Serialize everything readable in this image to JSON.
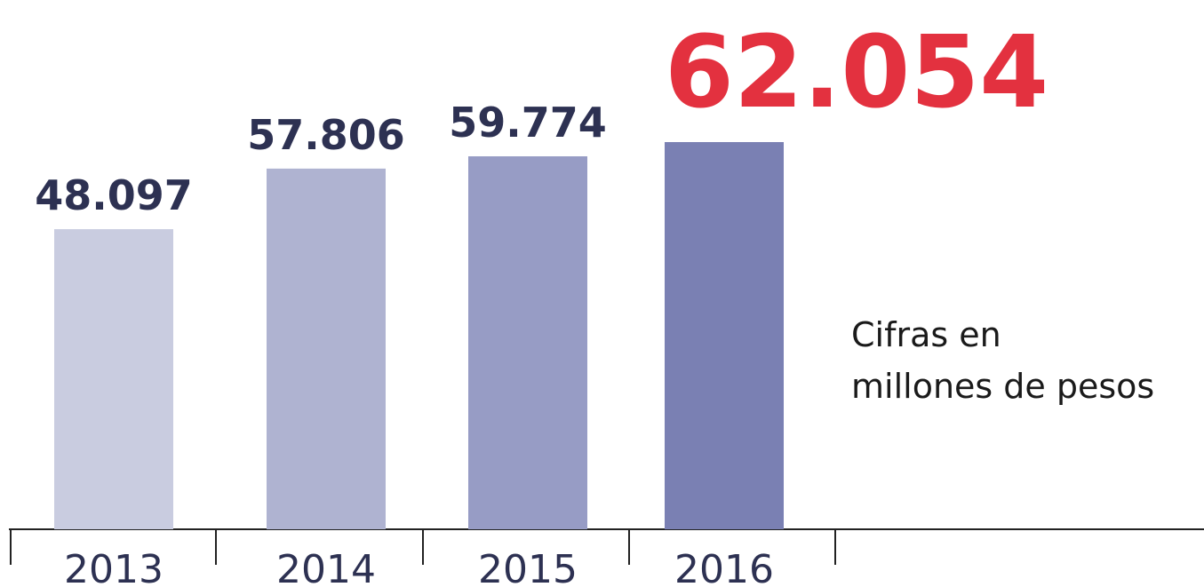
{
  "chart_data": {
    "type": "bar",
    "categories": [
      "2013",
      "2014",
      "2015",
      "2016"
    ],
    "values": [
      48097,
      57806,
      59774,
      62054
    ],
    "value_labels": [
      "48.097",
      "57.806",
      "59.774",
      "62.054"
    ],
    "colors": [
      "#c9cce0",
      "#afb3d1",
      "#979cc5",
      "#7a80b3"
    ],
    "label_color": "#2d3152",
    "highlight_color": "#e3313f",
    "note": [
      "Cifras en",
      "millones de pesos"
    ]
  }
}
